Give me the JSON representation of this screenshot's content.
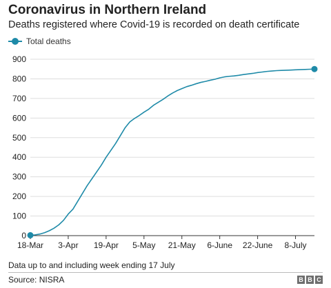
{
  "chart_data": {
    "type": "line",
    "title": "Coronavirus in Northern Ireland",
    "subtitle": "Deaths registered where Covid-19 is recorded on death certificate",
    "xlabel": "",
    "ylabel": "",
    "ylim": [
      0,
      900
    ],
    "yticks": [
      "0",
      "100",
      "200",
      "300",
      "400",
      "500",
      "600",
      "700",
      "800",
      "900"
    ],
    "xticks": [
      "18-Mar",
      "3-Apr",
      "19-Apr",
      "5-May",
      "21-May",
      "6-June",
      "22-June",
      "8-July"
    ],
    "grid": true,
    "legend_position": "top-left",
    "series": [
      {
        "name": "Total deaths",
        "color": "#1e8aa8",
        "x": [
          "18-Mar",
          "20-Mar",
          "22-Mar",
          "24-Mar",
          "26-Mar",
          "28-Mar",
          "30-Mar",
          "1-Apr",
          "3-Apr",
          "5-Apr",
          "7-Apr",
          "9-Apr",
          "11-Apr",
          "13-Apr",
          "15-Apr",
          "17-Apr",
          "19-Apr",
          "21-Apr",
          "23-Apr",
          "25-Apr",
          "27-Apr",
          "29-Apr",
          "1-May",
          "3-May",
          "5-May",
          "7-May",
          "9-May",
          "11-May",
          "13-May",
          "15-May",
          "17-May",
          "19-May",
          "21-May",
          "23-May",
          "25-May",
          "27-May",
          "29-May",
          "31-May",
          "2-June",
          "4-June",
          "6-June",
          "8-June",
          "10-June",
          "12-June",
          "14-June",
          "16-June",
          "18-June",
          "20-June",
          "22-June",
          "24-June",
          "26-June",
          "28-June",
          "30-June",
          "2-July",
          "4-July",
          "6-July",
          "8-July",
          "10-July",
          "12-July",
          "14-July",
          "17-July"
        ],
        "values": [
          2,
          4,
          8,
          15,
          25,
          38,
          55,
          78,
          110,
          135,
          175,
          215,
          255,
          290,
          325,
          360,
          400,
          435,
          470,
          510,
          550,
          580,
          598,
          613,
          630,
          645,
          665,
          680,
          695,
          712,
          727,
          740,
          750,
          760,
          767,
          775,
          782,
          787,
          793,
          798,
          805,
          810,
          813,
          815,
          818,
          822,
          825,
          828,
          832,
          835,
          838,
          840,
          842,
          843,
          844,
          845,
          846,
          847,
          848,
          849,
          850
        ]
      }
    ],
    "highlighted_points": [
      "first",
      "last"
    ]
  },
  "footer": {
    "note": "Data up to and including week ending 17 July",
    "source": "Source: NISRA",
    "logo_letters": [
      "B",
      "B",
      "C"
    ]
  }
}
